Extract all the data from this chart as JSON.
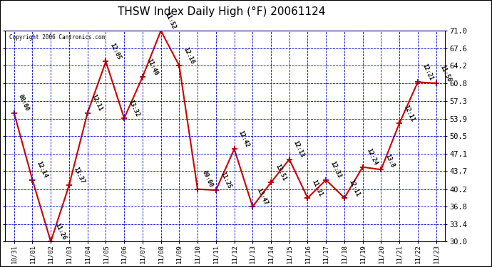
{
  "title": "THSW Index Daily High (°F) 20061124",
  "copyright": "Copyright 2006 Cantronics.com",
  "x_labels": [
    "10/31",
    "11/01",
    "11/02",
    "11/03",
    "11/04",
    "11/05",
    "11/06",
    "11/07",
    "11/08",
    "11/09",
    "11/10",
    "11/11",
    "11/12",
    "11/13",
    "11/14",
    "11/15",
    "11/16",
    "11/17",
    "11/18",
    "11/19",
    "11/20",
    "11/21",
    "11/22",
    "11/23"
  ],
  "y_values": [
    55.0,
    42.0,
    30.0,
    41.0,
    55.0,
    65.0,
    54.0,
    62.0,
    71.0,
    64.2,
    40.2,
    40.0,
    48.0,
    36.8,
    41.5,
    46.0,
    38.5,
    42.0,
    38.5,
    44.5,
    44.0,
    53.0,
    61.0,
    60.8
  ],
  "point_labels": [
    "00:00",
    "12:14",
    "11:26",
    "13:37",
    "12:11",
    "12:05",
    "13:32",
    "11:40",
    "11:52",
    "12:16",
    "09:00",
    "11:25",
    "12:42",
    "13:47",
    "13:51",
    "12:13",
    "11:31",
    "12:33",
    "12:11",
    "12:24",
    "13:8",
    "12:11",
    "12:21",
    "11:56"
  ],
  "ylim": [
    30.0,
    71.0
  ],
  "yticks": [
    30.0,
    33.4,
    36.8,
    40.2,
    43.7,
    47.1,
    50.5,
    53.9,
    57.3,
    60.8,
    64.2,
    67.6,
    71.0
  ],
  "line_color": "#cc0000",
  "marker_color": "#cc0000",
  "bg_color": "#ffffff",
  "plot_bg_color": "#ffffff",
  "grid_color": "#0000cc",
  "title_color": "#000000"
}
